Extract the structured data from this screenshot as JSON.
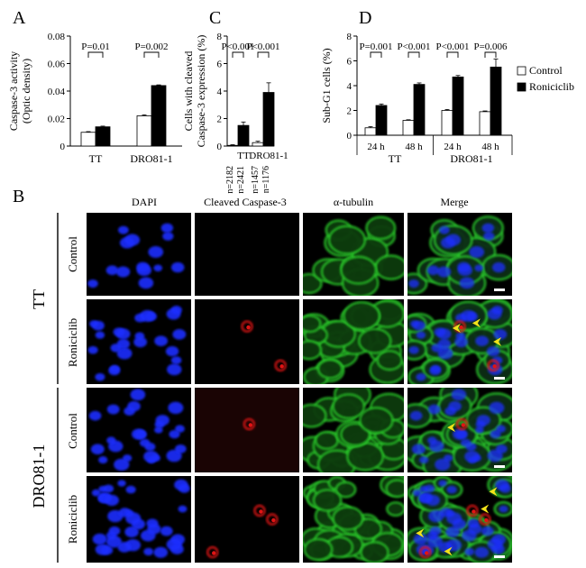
{
  "panel_letters": {
    "a": "A",
    "b": "B",
    "c": "C",
    "d": "D"
  },
  "chart_data": [
    {
      "panel": "A",
      "type": "bar",
      "ylabel_lines": [
        "Caspase-3 activity",
        "(Optic density)"
      ],
      "categories": [
        "TT",
        "DRO81-1"
      ],
      "series": [
        {
          "values": [
            0.01,
            0.022
          ],
          "errors": [
            0.0005,
            0.0007
          ],
          "fill": "#ffffff"
        },
        {
          "values": [
            0.014,
            0.044
          ],
          "errors": [
            0.0005,
            0.0005
          ],
          "fill": "#000000"
        }
      ],
      "ylim": [
        0,
        0.08
      ],
      "yticks": [
        "0",
        "0.02",
        "0.04",
        "0.06",
        "0.08"
      ],
      "pvalues": [
        "P=0.01",
        "P=0.002"
      ]
    },
    {
      "panel": "C",
      "type": "bar",
      "ylabel_lines": [
        "Cells with cleaved",
        "Caspase-3 expression (%)"
      ],
      "categories": [
        "TT",
        "DRO81-1"
      ],
      "series": [
        {
          "values": [
            0.05,
            0.25
          ],
          "errors": [
            0.05,
            0.1
          ],
          "fill": "#ffffff"
        },
        {
          "values": [
            1.5,
            3.9
          ],
          "errors": [
            0.25,
            0.7
          ],
          "fill": "#000000"
        }
      ],
      "ylim": [
        0,
        8
      ],
      "yticks": [
        "0",
        "2",
        "4",
        "6",
        "8"
      ],
      "pvalues": [
        "P<0.001",
        "P<0.001"
      ],
      "n_labels": [
        [
          "n=2182",
          "n=2421"
        ],
        [
          "n=1457",
          "n=1176"
        ]
      ]
    },
    {
      "panel": "D",
      "type": "bar",
      "ylabel_lines": [
        "Sub-G1 cells (%)"
      ],
      "categories": [
        "24 h",
        "48 h",
        "24 h",
        "48 h"
      ],
      "groups": [
        "TT",
        "DRO81-1"
      ],
      "series": [
        {
          "name": "Control",
          "values": [
            0.6,
            1.2,
            2.0,
            1.9
          ],
          "errors": [
            0.1,
            0.05,
            0.08,
            0.06
          ],
          "fill": "#ffffff"
        },
        {
          "name": "Roniciclib",
          "values": [
            2.4,
            4.1,
            4.7,
            5.5
          ],
          "errors": [
            0.12,
            0.12,
            0.12,
            0.65
          ],
          "fill": "#000000"
        }
      ],
      "ylim": [
        0,
        8
      ],
      "yticks": [
        "0",
        "2",
        "4",
        "6",
        "8"
      ],
      "pvalues": [
        "P=0.001",
        "P<0.001",
        "P<0.001",
        "P=0.006"
      ],
      "legend_position": "right"
    }
  ],
  "micrograph": {
    "column_headers": [
      "DAPI",
      "Cleaved Caspase-3",
      "α-tubulin",
      "Merge"
    ],
    "cell_lines": [
      "TT",
      "DRO81-1"
    ],
    "row_labels": [
      "Control",
      "Roniciclib",
      "Control",
      "Roniciclib"
    ],
    "colors": {
      "dapi": "#1a2dff",
      "caspase": "#e01414",
      "tubulin": "#2fd62f",
      "arrow": "#f2e21a",
      "background": "#000000"
    }
  }
}
